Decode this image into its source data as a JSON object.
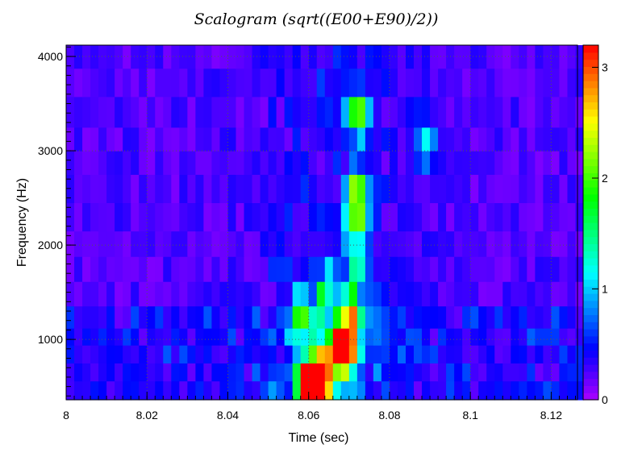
{
  "chart_data": {
    "type": "heatmap",
    "title": "Scalogram (sqrt((E00+E90)/2))",
    "xlabel": "Time (sec)",
    "ylabel": "Frequency (Hz)",
    "xlim": [
      8.0,
      8.1265
    ],
    "ylim": [
      360,
      4120
    ],
    "x_ticks": [
      "8",
      "8.02",
      "8.04",
      "8.06",
      "8.08",
      "8.1",
      "8.12"
    ],
    "x_tick_values": [
      8.0,
      8.02,
      8.04,
      8.06,
      8.08,
      8.1,
      8.12
    ],
    "y_ticks": [
      "1000",
      "2000",
      "3000",
      "4000"
    ],
    "y_tick_values": [
      1000,
      2000,
      3000,
      4000
    ],
    "grid": true,
    "colorbar": {
      "range": [
        0,
        3.2
      ],
      "ticks": [
        "0",
        "1",
        "2",
        "3"
      ],
      "tick_values": [
        0,
        1,
        2,
        3
      ],
      "palette": "rainbow"
    },
    "time_bin_width_sec": 0.002,
    "frequency_bins_hz": [
      500,
      620,
      880,
      1000,
      1240,
      1470,
      1760,
      2000,
      2300,
      2600,
      2900,
      3100,
      3400,
      3750,
      4000
    ],
    "hotspots": [
      {
        "t": 8.063,
        "f": 620,
        "value": 3.2
      },
      {
        "t": 8.061,
        "f": 620,
        "value": 2.6
      },
      {
        "t": 8.069,
        "f": 880,
        "value": 2.9
      },
      {
        "t": 8.059,
        "f": 500,
        "value": 1.7
      },
      {
        "t": 8.067,
        "f": 880,
        "value": 1.9
      },
      {
        "t": 8.07,
        "f": 1240,
        "value": 2.0
      },
      {
        "t": 8.072,
        "f": 2300,
        "value": 1.5
      },
      {
        "t": 8.072,
        "f": 2600,
        "value": 1.6
      },
      {
        "t": 8.072,
        "f": 3400,
        "value": 1.9
      },
      {
        "t": 8.072,
        "f": 1760,
        "value": 1.2
      },
      {
        "t": 8.058,
        "f": 1240,
        "value": 1.3
      },
      {
        "t": 8.064,
        "f": 1470,
        "value": 1.1
      },
      {
        "t": 8.089,
        "f": 3100,
        "value": 0.9
      }
    ]
  }
}
